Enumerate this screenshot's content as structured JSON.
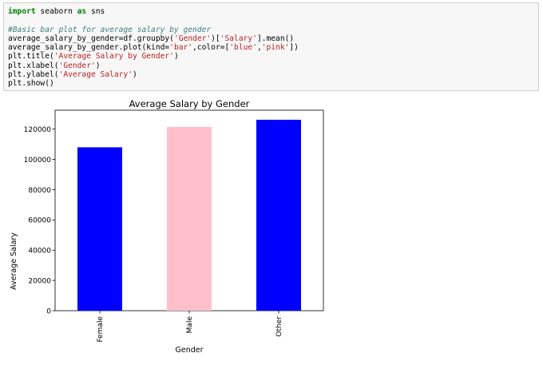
{
  "code_cell": {
    "lines": [
      [
        {
          "t": "import",
          "c": "kw"
        },
        {
          "t": " seaborn ",
          "c": ""
        },
        {
          "t": "as",
          "c": "kw"
        },
        {
          "t": " sns",
          "c": ""
        }
      ],
      [],
      [
        {
          "t": "#Basic bar plot for average salary by gender",
          "c": "cm"
        }
      ],
      [
        {
          "t": "average_salary_by_gender=df.groupby(",
          "c": ""
        },
        {
          "t": "'Gender'",
          "c": "st"
        },
        {
          "t": ")[",
          "c": ""
        },
        {
          "t": "'Salary'",
          "c": "st"
        },
        {
          "t": "].mean()",
          "c": ""
        }
      ],
      [
        {
          "t": "average_salary_by_gender.plot(kind=",
          "c": ""
        },
        {
          "t": "'bar'",
          "c": "st"
        },
        {
          "t": ",color=[",
          "c": ""
        },
        {
          "t": "'blue'",
          "c": "st"
        },
        {
          "t": ",",
          "c": ""
        },
        {
          "t": "'pink'",
          "c": "st"
        },
        {
          "t": "])",
          "c": ""
        }
      ],
      [
        {
          "t": "plt.title(",
          "c": ""
        },
        {
          "t": "'Average Salary by Gender'",
          "c": "st"
        },
        {
          "t": ")",
          "c": ""
        }
      ],
      [
        {
          "t": "plt.xlabel(",
          "c": ""
        },
        {
          "t": "'Gender'",
          "c": "st"
        },
        {
          "t": ")",
          "c": ""
        }
      ],
      [
        {
          "t": "plt.ylabel(",
          "c": ""
        },
        {
          "t": "'Average Salary'",
          "c": "st"
        },
        {
          "t": ")",
          "c": ""
        }
      ],
      [
        {
          "t": "plt.show()",
          "c": ""
        }
      ]
    ]
  },
  "chart_data": {
    "type": "bar",
    "title": "Average Salary by Gender",
    "xlabel": "Gender",
    "ylabel": "Average Salary",
    "categories": [
      "Female",
      "Male",
      "Other"
    ],
    "values": [
      108000,
      121500,
      126200
    ],
    "colors": [
      "#0000ff",
      "#ffc0cb",
      "#0000ff"
    ],
    "ylim": [
      0,
      132500
    ],
    "yticks": [
      0,
      20000,
      40000,
      60000,
      80000,
      100000,
      120000
    ],
    "grid": false,
    "legend": "none"
  }
}
